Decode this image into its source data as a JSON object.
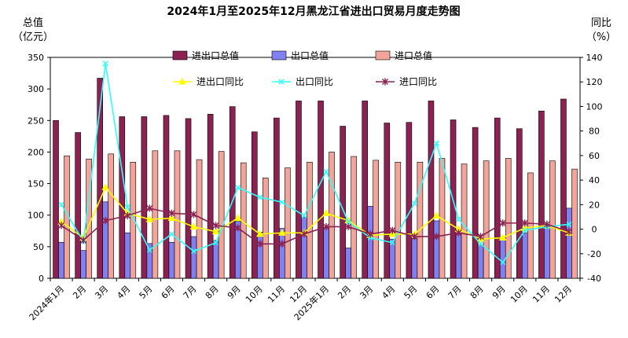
{
  "chart_data": {
    "type": "bar",
    "title": "2024年1月至2025年12月黑龙江省进出口贸易月度走势图",
    "ylabel_left": [
      "总值",
      "（亿元）"
    ],
    "ylabel_right": [
      "同比",
      "（%）"
    ],
    "ylim_left": [
      0,
      350
    ],
    "yticks_left": [
      0,
      50,
      100,
      150,
      200,
      250,
      300,
      350
    ],
    "ylim_right": [
      -40,
      140
    ],
    "yticks_right": [
      -40,
      -20,
      0,
      20,
      40,
      60,
      80,
      100,
      120,
      140
    ],
    "categories": [
      "2024年1月",
      "2月",
      "3月",
      "4月",
      "5月",
      "6月",
      "7月",
      "8月",
      "9月",
      "10月",
      "11月",
      "12月",
      "2025年1月",
      "2月",
      "3月",
      "4月",
      "5月",
      "6月",
      "7月",
      "8月",
      "9月",
      "10月",
      "11月",
      "12月"
    ],
    "bar_series": [
      {
        "name": "进出口总值",
        "color": "#8B2252",
        "values": [
          250,
          231,
          317,
          256,
          256,
          258,
          253,
          260,
          272,
          232,
          254,
          281,
          281,
          241,
          281,
          246,
          247,
          281,
          251,
          239,
          254,
          237,
          265,
          284
        ]
      },
      {
        "name": "出口总值",
        "color": "#8080F0",
        "values": [
          57,
          44,
          121,
          72,
          55,
          57,
          66,
          60,
          90,
          73,
          79,
          97,
          81,
          48,
          114,
          62,
          63,
          91,
          71,
          53,
          64,
          72,
          80,
          111
        ]
      },
      {
        "name": "进口总值",
        "color": "#F2A39A",
        "values": [
          194,
          189,
          197,
          184,
          202,
          202,
          188,
          201,
          183,
          159,
          175,
          184,
          200,
          193,
          187,
          184,
          184,
          190,
          181,
          186,
          190,
          167,
          186,
          173
        ]
      }
    ],
    "line_series": [
      {
        "name": "进出口同比",
        "color": "#FFFF00",
        "marker": "triangle",
        "values": [
          6,
          -7,
          34,
          13,
          8,
          9,
          2,
          -2,
          9,
          -4,
          -3,
          -3,
          13,
          7,
          -5,
          -4,
          -4,
          11,
          0,
          -8,
          -7,
          1,
          3,
          -3
        ]
      },
      {
        "name": "出口同比",
        "color": "#33FFFF",
        "marker": "x",
        "values": [
          20,
          -10,
          135,
          18,
          -17,
          -4,
          -18,
          -11,
          34,
          26,
          22,
          11,
          47,
          6,
          -7,
          -11,
          21,
          70,
          8,
          -12,
          -27,
          -1,
          2,
          4
        ]
      },
      {
        "name": "进口同比",
        "color": "#8B2252",
        "marker": "star",
        "values": [
          3,
          -9,
          7,
          11,
          17,
          13,
          12,
          3,
          1,
          -12,
          -12,
          -4,
          2,
          2,
          -4,
          -1,
          -6,
          -6,
          -3,
          -6,
          5,
          5,
          4,
          -2
        ]
      }
    ],
    "legend_position": "top"
  }
}
